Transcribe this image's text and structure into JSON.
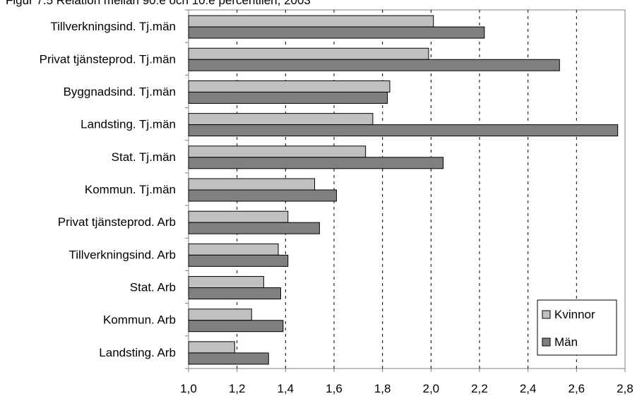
{
  "chart_data": {
    "type": "bar",
    "orientation": "horizontal",
    "title": "Figur 7.5 Relation mellan 90:e och 10:e percentilen, 2003",
    "categories": [
      "Tillverkningsind. Tj.män",
      "Privat tjänsteprod. Tj.män",
      "Byggnadsind. Tj.män",
      "Landsting. Tj.män",
      "Stat. Tj.män",
      "Kommun. Tj.män",
      "Privat tjänsteprod. Arb",
      "Tillverkningsind. Arb",
      "Stat. Arb",
      "Kommun. Arb",
      "Landsting. Arb"
    ],
    "series": [
      {
        "name": "Kvinnor",
        "color": "#c0c0c0",
        "values": [
          2.01,
          1.99,
          1.83,
          1.76,
          1.73,
          1.52,
          1.41,
          1.37,
          1.31,
          1.26,
          1.19
        ]
      },
      {
        "name": "Män",
        "color": "#808080",
        "values": [
          2.22,
          2.53,
          1.82,
          2.77,
          2.05,
          1.61,
          1.54,
          1.41,
          1.38,
          1.39,
          1.33
        ]
      }
    ],
    "xlim": [
      1.0,
      2.8
    ],
    "xticks": [
      "1,0",
      "1,2",
      "1,4",
      "1,6",
      "1,8",
      "2,0",
      "2,2",
      "2,4",
      "2,6",
      "2,8"
    ],
    "xtick_values": [
      1.0,
      1.2,
      1.4,
      1.6,
      1.8,
      2.0,
      2.2,
      2.4,
      2.6,
      2.8
    ],
    "gridlines": "vertical dashed",
    "legend": "bottom-right"
  }
}
